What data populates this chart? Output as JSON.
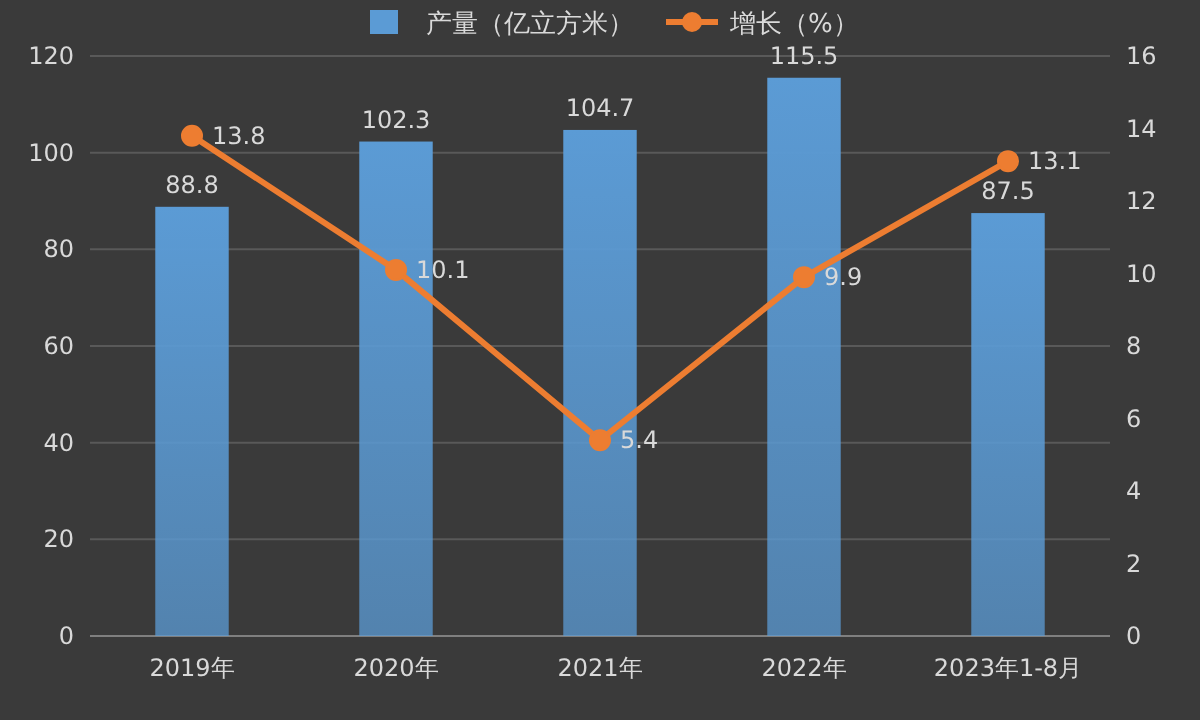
{
  "chart_data": {
    "type": "bar",
    "categories": [
      "2019年",
      "2020年",
      "2021年",
      "2022年",
      "2023年1-8月"
    ],
    "series": [
      {
        "name": "产量（亿立方米）",
        "color": "#5b9bd5",
        "values": [
          88.8,
          102.3,
          104.7,
          115.5,
          87.5
        ]
      },
      {
        "name": "增长（%）",
        "type": "line",
        "axis": "y2",
        "color": "#ed7d31",
        "values": [
          13.8,
          10.1,
          5.4,
          9.9,
          13.1
        ]
      }
    ],
    "ylim": [
      0,
      120
    ],
    "yticks": [
      0,
      20,
      40,
      60,
      80,
      100,
      120
    ],
    "y2lim": [
      0,
      16
    ],
    "y2ticks": [
      0,
      2,
      4,
      6,
      8,
      10,
      12,
      14,
      16
    ],
    "grid": "y",
    "legend": "top",
    "marker": "circle",
    "data_labels": true
  }
}
